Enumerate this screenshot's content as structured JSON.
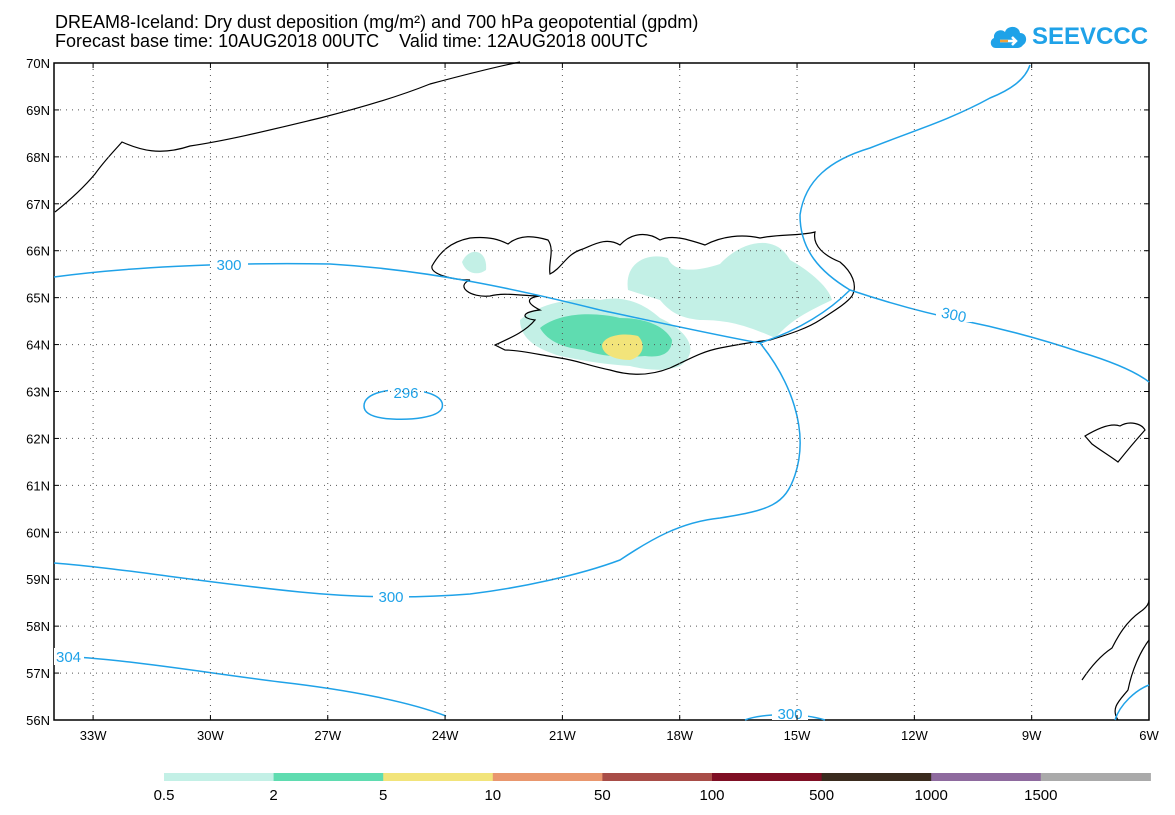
{
  "title": {
    "line1": "DREAM8-Iceland: Dry dust deposition (mg/m²) and 700 hPa geopotential (gpdm)",
    "line2": "Forecast base time: 10AUG2018 00UTC    Valid time: 12AUG2018 00UTC"
  },
  "logo": {
    "text": "SEEVCCC",
    "icon": "cloud-icon",
    "color": "#1fa2e8"
  },
  "map": {
    "lat_labels": [
      "70N",
      "69N",
      "68N",
      "67N",
      "66N",
      "65N",
      "64N",
      "63N",
      "62N",
      "61N",
      "60N",
      "59N",
      "58N",
      "57N",
      "56N"
    ],
    "lon_labels": [
      "33W",
      "30W",
      "27W",
      "24W",
      "21W",
      "18W",
      "15W",
      "12W",
      "9W",
      "6W"
    ],
    "contour_color": "#1fa2e8",
    "contour_labels": [
      "300",
      "300",
      "296",
      "300",
      "304",
      "300"
    ],
    "coastline_color": "#000000"
  },
  "legend": {
    "colors": [
      "#c3f0e6",
      "#5fdcb0",
      "#f2e47a",
      "#e9976e",
      "#a84d47",
      "#7f0f24",
      "#3a2b1e",
      "#8e6a9e",
      "#aaaaaa"
    ],
    "labels": [
      "0.5",
      "2",
      "5",
      "10",
      "50",
      "100",
      "500",
      "1000",
      "1500"
    ]
  }
}
